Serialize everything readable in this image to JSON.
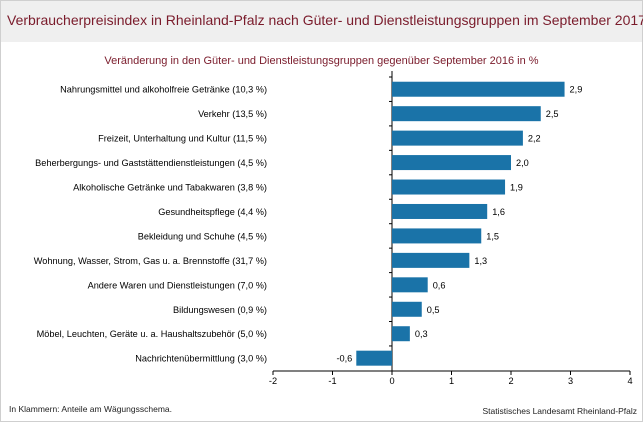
{
  "header": {
    "title": "Verbraucherpreisindex in Rheinland-Pfalz nach Güter- und Dienstleistungsgruppen im September 2017"
  },
  "chart_data": {
    "type": "bar",
    "orientation": "horizontal",
    "subtitle": "Veränderung in den Güter- und Dienstleistungsgruppen gegenüber September 2016 in %",
    "categories": [
      "Nahrungsmittel und alkoholfreie Getränke (10,3 %)",
      "Verkehr (13,5 %)",
      "Freizeit, Unterhaltung und Kultur (11,5 %)",
      "Beherbergungs- und Gaststättendienstleistungen (4,5 %)",
      "Alkoholische Getränke und Tabakwaren (3,8 %)",
      "Gesundheitspflege (4,4 %)",
      "Bekleidung und Schuhe (4,5 %)",
      "Wohnung, Wasser, Strom, Gas u. a. Brennstoffe (31,7 %)",
      "Andere Waren und Dienstleistungen (7,0 %)",
      "Bildungswesen (0,9 %)",
      "Möbel, Leuchten, Geräte u. a. Haushaltszubehör  (5,0 %)",
      "Nachrichtenübermittlung (3,0 %)"
    ],
    "values": [
      2.9,
      2.5,
      2.2,
      2.0,
      1.9,
      1.6,
      1.5,
      1.3,
      0.6,
      0.5,
      0.3,
      -0.6
    ],
    "value_labels": [
      "2,9",
      "2,5",
      "2,2",
      "2,0",
      "1,9",
      "1,6",
      "1,5",
      "1,3",
      "0,6",
      "0,5",
      "0,3",
      "-0,6"
    ],
    "xlim": [
      -2,
      4
    ],
    "xticks": [
      -2,
      -1,
      0,
      1,
      2,
      3,
      4
    ],
    "xtick_labels": [
      "-2",
      "-1",
      "0",
      "1",
      "2",
      "3",
      "4"
    ],
    "grid": false,
    "bar_color": "#1a73a8"
  },
  "footer": {
    "note": "In Klammern: Anteile am Wägungsschema.",
    "source": "Statistisches Landesamt Rheinland-Pfalz"
  }
}
